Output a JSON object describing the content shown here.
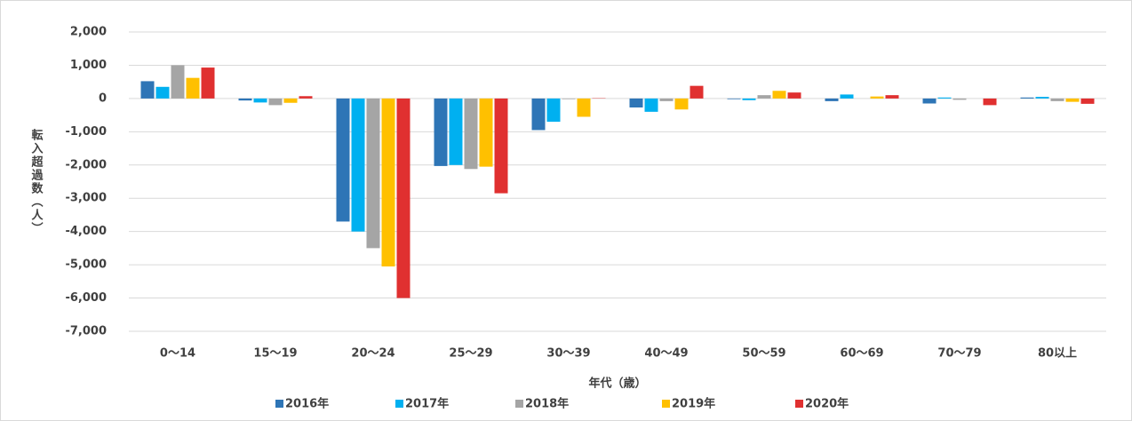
{
  "chart_data": {
    "type": "bar",
    "y_label": "転入超過数（人）",
    "x_label": "年代（歳）",
    "categories": [
      "0〜14",
      "15〜19",
      "20〜24",
      "25〜29",
      "30〜39",
      "40〜49",
      "50〜59",
      "60〜69",
      "70〜79",
      "80以上"
    ],
    "series": [
      {
        "name": "2016年",
        "color": "#2e75b6",
        "values": [
          520,
          -60,
          -3700,
          -2030,
          -950,
          -270,
          -20,
          -80,
          -150,
          30
        ]
      },
      {
        "name": "2017年",
        "color": "#00b0f0",
        "values": [
          350,
          -120,
          -4000,
          -2000,
          -700,
          -400,
          -50,
          120,
          30,
          50
        ]
      },
      {
        "name": "2018年",
        "color": "#a5a5a5",
        "values": [
          1000,
          -200,
          -4500,
          -2120,
          -20,
          -80,
          100,
          0,
          -40,
          -80
        ]
      },
      {
        "name": "2019年",
        "color": "#ffc000",
        "values": [
          620,
          -130,
          -5050,
          -2050,
          -550,
          -330,
          230,
          60,
          0,
          -100
        ]
      },
      {
        "name": "2020年",
        "color": "#e03030",
        "values": [
          930,
          70,
          -6000,
          -2850,
          10,
          380,
          180,
          100,
          -200,
          -160
        ]
      }
    ],
    "ylim": [
      -7000,
      2000
    ],
    "yticks": [
      {
        "value": -7000,
        "label": "-7,000"
      },
      {
        "value": -6000,
        "label": "-6,000"
      },
      {
        "value": -5000,
        "label": "-5,000"
      },
      {
        "value": -4000,
        "label": "-4,000"
      },
      {
        "value": -3000,
        "label": "-3,000"
      },
      {
        "value": -2000,
        "label": "-2,000"
      },
      {
        "value": -1000,
        "label": "-1,000"
      },
      0,
      {
        "value": 1000,
        "label": "1,000"
      },
      {
        "value": 2000,
        "label": "2,000"
      }
    ],
    "grid": true,
    "legend": "bottom"
  }
}
